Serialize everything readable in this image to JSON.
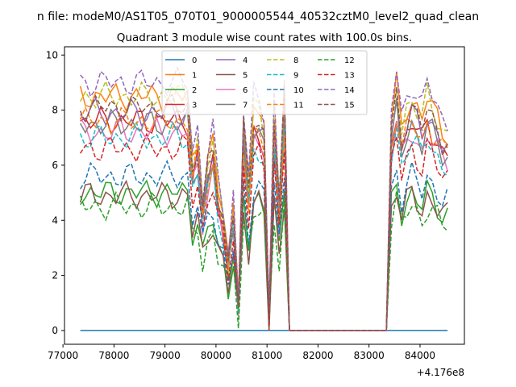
{
  "figure": {
    "suptitle": "n file: modeM0/AS1T05_070T01_9000005544_40532cztM0_level2_quad_clean",
    "title": "Quadrant 3 module wise count rates with 100.0s bins.",
    "x_offset_label": "+4.176e8"
  },
  "chart_data": {
    "type": "line",
    "title": "Quadrant 3 module wise count rates with 100.0s bins.",
    "xlabel": "",
    "ylabel": "",
    "x_offset": 417600000,
    "xlim": [
      77030,
      84870
    ],
    "ylim": [
      -0.5,
      10.3
    ],
    "xticks": [
      77000,
      78000,
      79000,
      80000,
      81000,
      82000,
      83000,
      84000
    ],
    "yticks": [
      0,
      2,
      4,
      6,
      8,
      10
    ],
    "legend_position": "top-center",
    "legend_columns": 4,
    "series": [
      {
        "name": "0",
        "color": "#1f77b4",
        "dash": "solid"
      },
      {
        "name": "1",
        "color": "#ff7f0e",
        "dash": "solid"
      },
      {
        "name": "2",
        "color": "#2ca02c",
        "dash": "solid"
      },
      {
        "name": "3",
        "color": "#d62728",
        "dash": "solid"
      },
      {
        "name": "4",
        "color": "#9467bd",
        "dash": "solid"
      },
      {
        "name": "5",
        "color": "#8c564b",
        "dash": "solid"
      },
      {
        "name": "6",
        "color": "#e377c2",
        "dash": "solid"
      },
      {
        "name": "7",
        "color": "#7f7f7f",
        "dash": "solid"
      },
      {
        "name": "8",
        "color": "#bcbd22",
        "dash": "dashed"
      },
      {
        "name": "9",
        "color": "#17becf",
        "dash": "dashed"
      },
      {
        "name": "10",
        "color": "#1f77b4",
        "dash": "dashed"
      },
      {
        "name": "11",
        "color": "#ff7f0e",
        "dash": "dashed"
      },
      {
        "name": "12",
        "color": "#2ca02c",
        "dash": "dashed"
      },
      {
        "name": "13",
        "color": "#d62728",
        "dash": "dashed"
      },
      {
        "name": "14",
        "color": "#9467bd",
        "dash": "dashed"
      },
      {
        "name": "15",
        "color": "#8c564b",
        "dash": "dashed"
      }
    ],
    "x_start": 77340,
    "x_step": 100,
    "n_points": 73,
    "baseline_levels": [
      0,
      8.5,
      5.0,
      7.6,
      7.9,
      4.9,
      7.2,
      7.5,
      8.5,
      7.0,
      5.6,
      7.6,
      4.5,
      6.6,
      9.0,
      8.1
    ],
    "level_profile": [
      1.0,
      1.0,
      1.0,
      1.0,
      1.0,
      1.0,
      1.0,
      1.0,
      1.0,
      1.0,
      1.0,
      1.0,
      1.0,
      1.0,
      1.0,
      1.0,
      1.0,
      1.0,
      1.0,
      1.0,
      1.0,
      1.0,
      0.72,
      0.82,
      0.55,
      0.72,
      0.8,
      0.6,
      0.5,
      0.3,
      0.55,
      0.12,
      0.9,
      0.6,
      0.95,
      0.95,
      0.88,
      0.07,
      0.95,
      0.55,
      1.0,
      0.0,
      0.0,
      0.0,
      0.0,
      0.0,
      0.0,
      0.0,
      0.0,
      0.0,
      0.0,
      0.0,
      0.0,
      0.0,
      0.0,
      0.0,
      0.0,
      0.0,
      0.0,
      0.0,
      0.0,
      0.9,
      1.05,
      0.85,
      0.95,
      1.0,
      0.95,
      0.9,
      1.0,
      0.95,
      0.9,
      0.85,
      0.85
    ]
  }
}
